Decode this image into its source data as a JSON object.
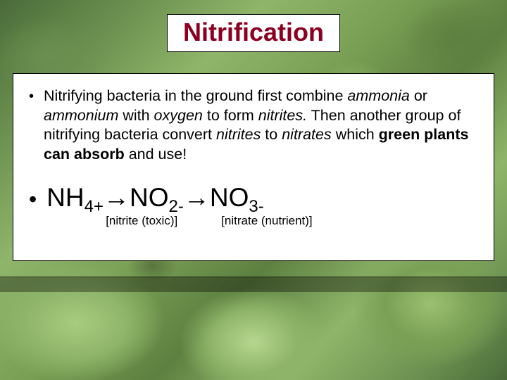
{
  "title": {
    "text": "Nitrification",
    "color": "#8b0020",
    "background": "#ffffff",
    "fontsize": 36,
    "border_color": "#000000"
  },
  "paragraph": {
    "prefix": "Nitrifying bacteria in the ground first combine ",
    "i1": "ammonia",
    "t1": " or ",
    "i2": "ammonium",
    "t2": " with ",
    "i3": "oxygen",
    "t3": " to form ",
    "i4": "nitrites.",
    "t4": "  Then another group of nitrifying bacteria convert ",
    "i5": "nitrites",
    "t5": " to ",
    "i6": "nitrates",
    "t6": " which ",
    "b1": "green plants can absorb",
    "t7": " and use!"
  },
  "formula": {
    "p1": "NH",
    "s1": "4+",
    "arr1": "→",
    "p2": "NO",
    "s2": "2-",
    "arr2": "→",
    "p3": "NO",
    "s3": "3-",
    "label_nitrite": "[nitrite (toxic)]",
    "label_nitrate": "[nitrate (nutrient)]"
  },
  "style": {
    "content_background": "#ffffff",
    "content_border": "#000000",
    "text_color": "#000000",
    "para_fontsize": 21.5,
    "formula_fontsize": 37,
    "sub_fontsize": 24,
    "label_fontsize": 17,
    "bullet_char": "•"
  },
  "background": {
    "greens": [
      "#4a6b3a",
      "#6a8f4f",
      "#8fb56a",
      "#7aa055",
      "#5d8040",
      "#a8cc7e",
      "#b5d68f",
      "#9bc070"
    ]
  }
}
